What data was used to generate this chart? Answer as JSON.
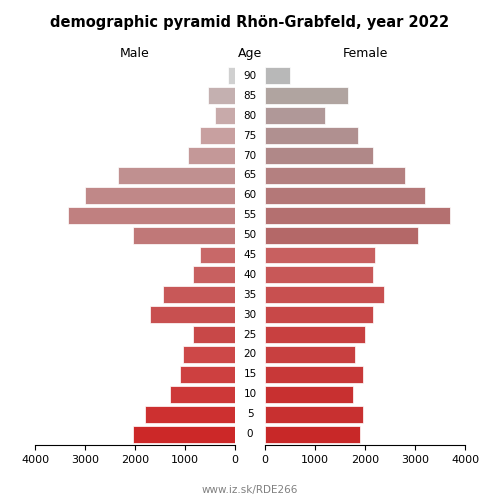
{
  "title": "demographic pyramid Rhön-Grabfeld, year 2022",
  "ages": [
    90,
    85,
    80,
    75,
    70,
    65,
    60,
    55,
    50,
    45,
    40,
    35,
    30,
    25,
    20,
    15,
    10,
    5,
    0
  ],
  "male": [
    150,
    550,
    400,
    700,
    950,
    2350,
    3000,
    3350,
    2050,
    700,
    850,
    1450,
    1700,
    850,
    1050,
    1100,
    1300,
    1800,
    2050
  ],
  "female": [
    500,
    1650,
    1200,
    1850,
    2150,
    2800,
    3200,
    3700,
    3050,
    2200,
    2150,
    2380,
    2150,
    2000,
    1800,
    1950,
    1750,
    1950,
    1900
  ],
  "male_colors": [
    "#d0d0d0",
    "#c4b0b0",
    "#c8aaaa",
    "#c8a0a0",
    "#c49898",
    "#c09090",
    "#c08888",
    "#c08080",
    "#c07878",
    "#c86868",
    "#c86060",
    "#c85858",
    "#c85050",
    "#c84848",
    "#cd4848",
    "#cd4040",
    "#cd3838",
    "#cd3030",
    "#cc2828"
  ],
  "female_colors": [
    "#b8b8b8",
    "#b0a4a0",
    "#b09898",
    "#b09090",
    "#b08888",
    "#b48080",
    "#b47878",
    "#b47070",
    "#b46868",
    "#c86060",
    "#c85858",
    "#c85050",
    "#c84848",
    "#c84040",
    "#c84040",
    "#c83838",
    "#c83030",
    "#c83030",
    "#c82828"
  ],
  "xlim": 4000,
  "footer": "www.iz.sk/RDE266",
  "bar_height": 0.85
}
